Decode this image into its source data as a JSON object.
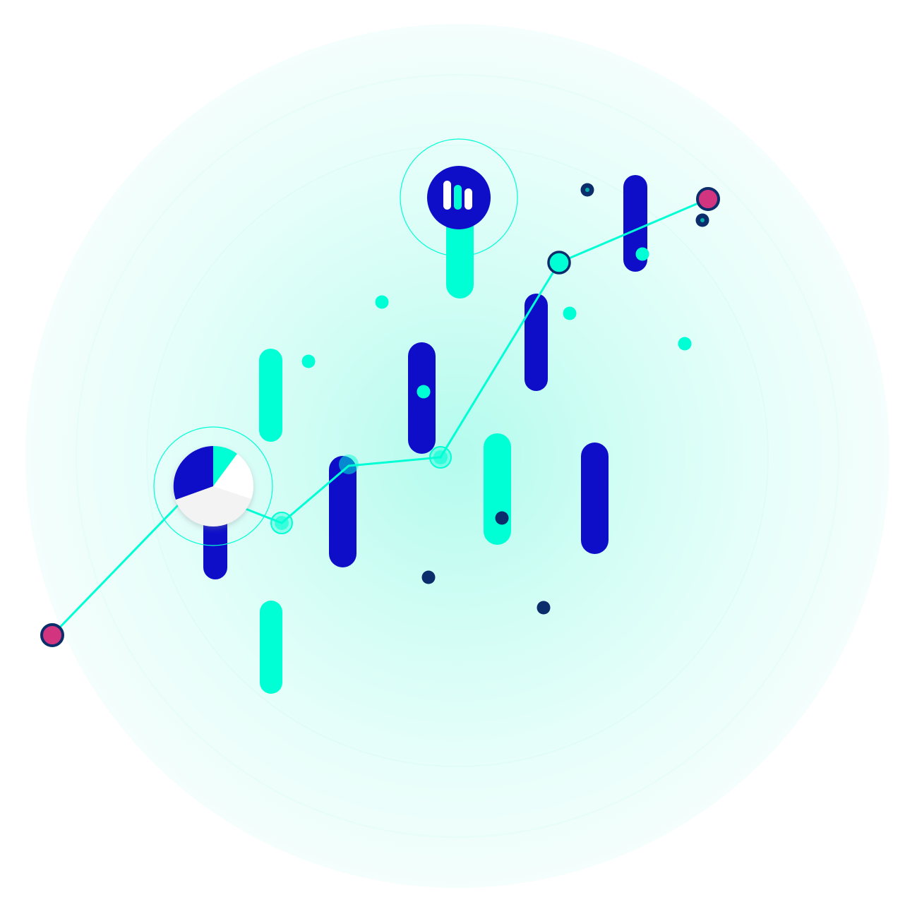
{
  "colors": {
    "background": "#ffffff",
    "glow_core": "#b8fbef",
    "glow_edge": "#f3fefc",
    "accent_teal": "#00ffd5",
    "brand_blue": "#0e0ec9",
    "navy": "#0b2d6b",
    "marker_pink": "#d33480",
    "pie_light": "#f3f3f3",
    "pie_white": "#ffffff"
  },
  "icons": {
    "bar_chart_badge": "bar-chart-icon",
    "pie_chart_badge": "pie-chart-icon",
    "line_start_marker": "pink-dot-icon",
    "line_end_marker": "pink-dot-icon"
  }
}
